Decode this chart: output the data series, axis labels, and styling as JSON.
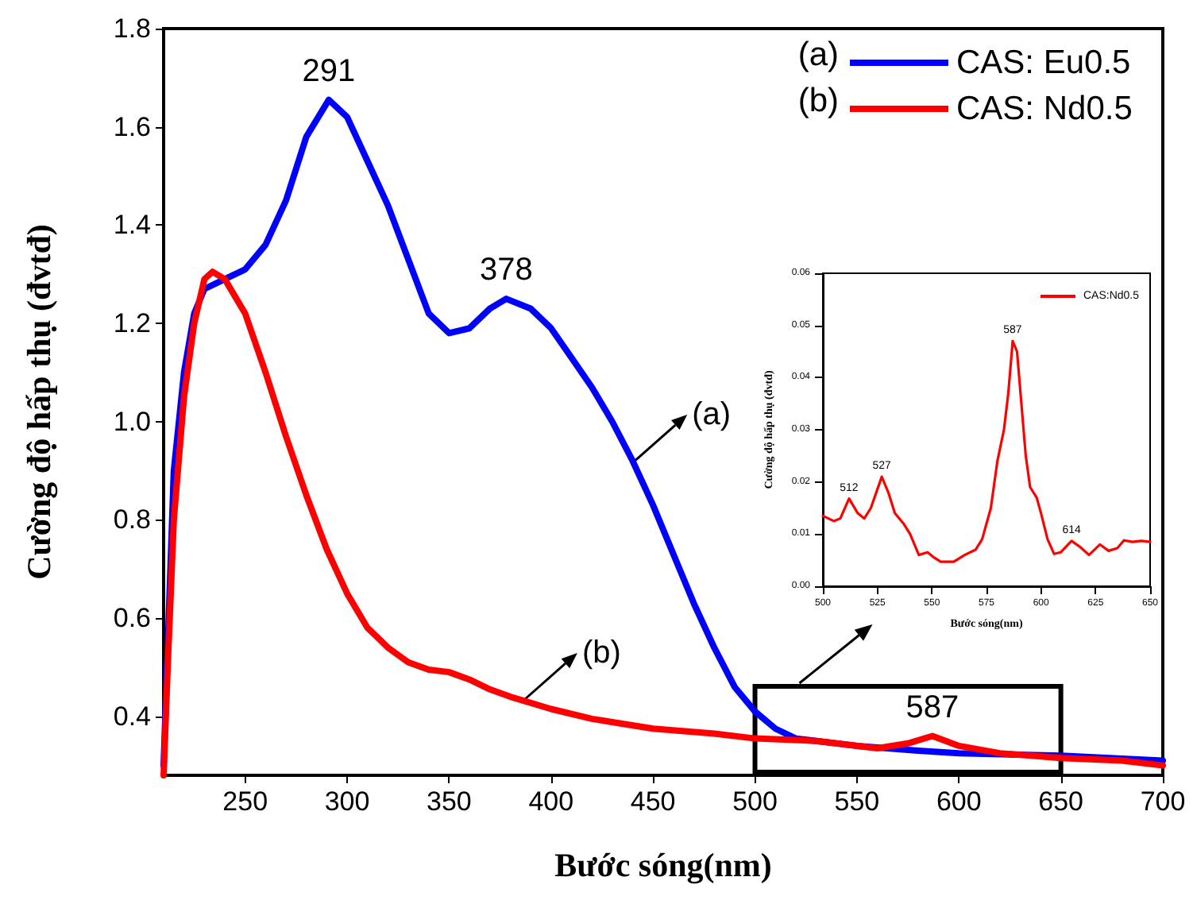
{
  "chart_data": [
    {
      "type": "line",
      "xlabel": "Bước sóng(nm)",
      "ylabel": "Cường độ hấp thụ (đvtđ)",
      "xlim": [
        210,
        700
      ],
      "xticks": [
        250,
        300,
        350,
        400,
        450,
        500,
        550,
        600,
        650,
        700
      ],
      "ylim": [
        0.28,
        1.8
      ],
      "yticks": [
        0.4,
        0.6,
        0.8,
        {
          "value": 1,
          "label": "1.0"
        },
        1.2,
        1.4,
        1.6,
        1.8
      ],
      "legend": "top right",
      "grid": false,
      "line_style": "solid",
      "series": [
        {
          "name": "CAS: Eu0.5",
          "color": "#0000ff",
          "x": [
            210,
            215,
            220,
            225,
            230,
            240,
            250,
            260,
            270,
            280,
            291,
            300,
            310,
            320,
            330,
            340,
            350,
            360,
            370,
            378,
            390,
            400,
            410,
            420,
            430,
            440,
            450,
            460,
            470,
            480,
            490,
            500,
            510,
            520,
            530,
            550,
            580,
            600,
            650,
            700
          ],
          "values": [
            0.3,
            0.9,
            1.1,
            1.22,
            1.27,
            1.29,
            1.31,
            1.36,
            1.45,
            1.58,
            1.655,
            1.62,
            1.53,
            1.44,
            1.33,
            1.22,
            1.18,
            1.19,
            1.23,
            1.25,
            1.23,
            1.19,
            1.13,
            1.07,
            1.0,
            0.92,
            0.83,
            0.73,
            0.63,
            0.54,
            0.46,
            0.41,
            0.375,
            0.355,
            0.35,
            0.34,
            0.33,
            0.325,
            0.32,
            0.31
          ]
        },
        {
          "name": "CAS: Nd0.5",
          "color": "#ff0000",
          "x": [
            210,
            212,
            215,
            220,
            225,
            230,
            234,
            240,
            250,
            260,
            270,
            280,
            290,
            300,
            310,
            320,
            330,
            340,
            350,
            360,
            370,
            380,
            400,
            420,
            450,
            480,
            500,
            530,
            560,
            575,
            587,
            600,
            620,
            650,
            680,
            700
          ],
          "values": [
            0.28,
            0.5,
            0.8,
            1.05,
            1.2,
            1.29,
            1.305,
            1.29,
            1.22,
            1.1,
            0.97,
            0.85,
            0.74,
            0.65,
            0.58,
            0.54,
            0.51,
            0.495,
            0.49,
            0.475,
            0.455,
            0.44,
            0.415,
            0.395,
            0.375,
            0.365,
            0.355,
            0.35,
            0.335,
            0.345,
            0.36,
            0.34,
            0.325,
            0.315,
            0.31,
            0.3
          ]
        }
      ],
      "annotations": [
        "(a)",
        "(b)",
        {
          "text": "291",
          "x": 291,
          "y": 1.655
        },
        {
          "text": "378",
          "x": 378,
          "y": 1.25
        },
        {
          "text": "587",
          "x": 587,
          "y": 0.36
        },
        "(a)",
        "(b)"
      ]
    },
    {
      "type": "line",
      "xlabel": "Bước sóng(nm)",
      "ylabel": "Cường độ hấp thụ (đvtđ)",
      "xlim": [
        500,
        650
      ],
      "xticks": [
        500,
        525,
        550,
        575,
        600,
        625,
        650
      ],
      "ylim": [
        0,
        0.06
      ],
      "yticks": [
        {
          "value": 0,
          "label": "0.00"
        },
        {
          "value": 0.01,
          "label": "0.01"
        },
        {
          "value": 0.02,
          "label": "0.02"
        },
        {
          "value": 0.03,
          "label": "0.03"
        },
        {
          "value": 0.04,
          "label": "0.04"
        },
        {
          "value": 0.05,
          "label": "0.05"
        },
        {
          "value": 0.06,
          "label": "0.06"
        }
      ],
      "legend": "top right",
      "grid": false,
      "line_style": "solid",
      "series": [
        {
          "name": "CAS:Nd0.5",
          "color": "#ff0000",
          "x": [
            500,
            505,
            508,
            512,
            516,
            519,
            522,
            527,
            530,
            533,
            537,
            540,
            544,
            548,
            551,
            554,
            560,
            565,
            570,
            573,
            577,
            580,
            583,
            585,
            587,
            589,
            591,
            593,
            595,
            598,
            600,
            603,
            606,
            609,
            614,
            618,
            622,
            627,
            631,
            635,
            638,
            642,
            646,
            650
          ],
          "values": [
            0.0135,
            0.0125,
            0.013,
            0.0168,
            0.014,
            0.013,
            0.015,
            0.021,
            0.018,
            0.014,
            0.012,
            0.01,
            0.006,
            0.0065,
            0.0055,
            0.0047,
            0.0047,
            0.006,
            0.007,
            0.009,
            0.015,
            0.024,
            0.03,
            0.037,
            0.047,
            0.045,
            0.035,
            0.025,
            0.019,
            0.017,
            0.014,
            0.009,
            0.0062,
            0.0065,
            0.0087,
            0.0075,
            0.006,
            0.008,
            0.0068,
            0.0073,
            0.0088,
            0.0085,
            0.0087,
            0.0085
          ]
        }
      ],
      "annotations": [
        {
          "text": "512",
          "x": 512,
          "y": 0.0168
        },
        {
          "text": "527",
          "x": 527,
          "y": 0.021
        },
        {
          "text": "587",
          "x": 587,
          "y": 0.047
        },
        {
          "text": "614",
          "x": 614,
          "y": 0.0087
        }
      ]
    }
  ]
}
